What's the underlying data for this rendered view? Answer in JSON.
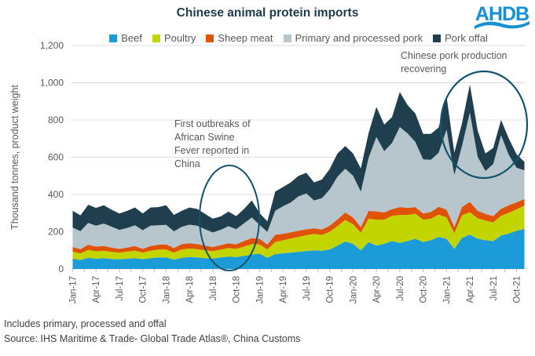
{
  "header": {
    "title": "Chinese animal protein imports",
    "logo_text": "AHDB",
    "logo_color": "#1590d2"
  },
  "annotations": {
    "asf": "First outbreaks of\nAfrican Swine\nFever reported  in\nChina",
    "recovery": "Chinese pork production\nrecovering"
  },
  "footer": {
    "note": "Includes  primary, processed and offal",
    "source": "Source: IHS Maritime & Trade- Global Trade Atlas®, China Customs"
  },
  "colors": {
    "grid": "#dcdcdc",
    "tick": "#bfbfbf",
    "axis_text": "#595959",
    "ellipse": "#14536e"
  },
  "chart_data": {
    "type": "area",
    "stacked": true,
    "title": "Chinese animal protein imports",
    "xlabel": "",
    "ylabel": "Thousand tonnes, product weight",
    "ylim": [
      0,
      1200
    ],
    "y_tick_step": 200,
    "y_tick_labels": [
      "0",
      "200",
      "400",
      "600",
      "800",
      "1,000",
      "1,200"
    ],
    "x_label_every": 3,
    "grid": "horizontal",
    "legend_position": "top",
    "categories": [
      "Jan-17",
      "Feb-17",
      "Mar-17",
      "Apr-17",
      "May-17",
      "Jun-17",
      "Jul-17",
      "Aug-17",
      "Sep-17",
      "Oct-17",
      "Nov-17",
      "Dec-17",
      "Jan-18",
      "Feb-18",
      "Mar-18",
      "Apr-18",
      "May-18",
      "Jun-18",
      "Jul-18",
      "Aug-18",
      "Sep-18",
      "Oct-18",
      "Nov-18",
      "Dec-18",
      "Jan-19",
      "Feb-19",
      "Mar-19",
      "Apr-19",
      "May-19",
      "Jun-19",
      "Jul-19",
      "Aug-19",
      "Sep-19",
      "Oct-19",
      "Nov-19",
      "Dec-19",
      "Jan-20",
      "Feb-20",
      "Mar-20",
      "Apr-20",
      "May-20",
      "Jun-20",
      "Jul-20",
      "Aug-20",
      "Sep-20",
      "Oct-20",
      "Nov-20",
      "Dec-20",
      "Jan-21",
      "Feb-21",
      "Mar-21",
      "Apr-21",
      "May-21",
      "Jun-21",
      "Jul-21",
      "Aug-21",
      "Sep-21",
      "Oct-21",
      "Nov-21"
    ],
    "series": [
      {
        "name": "Beef",
        "color": "#1b9cd8",
        "values": [
          55,
          48,
          60,
          55,
          58,
          54,
          52,
          55,
          58,
          52,
          58,
          62,
          62,
          50,
          60,
          64,
          62,
          58,
          56,
          62,
          66,
          64,
          70,
          78,
          82,
          60,
          80,
          84,
          88,
          92,
          96,
          100,
          98,
          105,
          125,
          148,
          135,
          100,
          145,
          125,
          135,
          150,
          140,
          150,
          162,
          145,
          155,
          172,
          162,
          108,
          168,
          185,
          162,
          155,
          150,
          180,
          190,
          205,
          215
        ]
      },
      {
        "name": "Poultry",
        "color": "#c3d500",
        "values": [
          38,
          36,
          42,
          40,
          40,
          38,
          36,
          38,
          40,
          36,
          40,
          42,
          42,
          38,
          44,
          46,
          45,
          42,
          40,
          42,
          46,
          44,
          50,
          55,
          50,
          45,
          65,
          70,
          75,
          80,
          85,
          88,
          85,
          95,
          105,
          115,
          105,
          95,
          125,
          140,
          130,
          135,
          150,
          140,
          135,
          120,
          115,
          120,
          115,
          85,
          120,
          120,
          110,
          105,
          100,
          105,
          112,
          115,
          125
        ]
      },
      {
        "name": "Sheep meat",
        "color": "#e05206",
        "values": [
          25,
          22,
          28,
          25,
          26,
          23,
          20,
          22,
          25,
          20,
          25,
          26,
          28,
          24,
          30,
          28,
          27,
          25,
          22,
          24,
          26,
          24,
          30,
          33,
          30,
          26,
          38,
          35,
          34,
          33,
          32,
          30,
          29,
          32,
          36,
          40,
          36,
          30,
          42,
          44,
          38,
          36,
          42,
          38,
          35,
          33,
          36,
          42,
          42,
          32,
          45,
          55,
          40,
          36,
          34,
          38,
          40,
          38,
          35
        ]
      },
      {
        "name": "Primary and processed pork",
        "color": "#b7c5cd",
        "values": [
          104,
          97,
          117,
          112,
          120,
          112,
          102,
          105,
          112,
          100,
          110,
          105,
          105,
          90,
          92,
          100,
          98,
          88,
          78,
          82,
          92,
          82,
          95,
          110,
          75,
          68,
          130,
          148,
          160,
          185,
          192,
          150,
          168,
          195,
          230,
          235,
          225,
          190,
          285,
          400,
          330,
          355,
          430,
          400,
          350,
          290,
          280,
          290,
          430,
          280,
          330,
          480,
          290,
          230,
          280,
          395,
          270,
          185,
          155
        ]
      },
      {
        "name": "Pork offal",
        "color": "#1f3f4f",
        "values": [
          90,
          85,
          98,
          96,
          98,
          91,
          88,
          92,
          95,
          90,
          97,
          97,
          105,
          88,
          86,
          92,
          90,
          83,
          74,
          72,
          78,
          70,
          77,
          92,
          63,
          56,
          102,
          103,
          108,
          110,
          111,
          97,
          100,
          110,
          124,
          122,
          119,
          125,
          133,
          161,
          142,
          139,
          188,
          152,
          153,
          137,
          139,
          136,
          178,
          120,
          122,
          150,
          141,
          94,
          86,
          82,
          88,
          72,
          45
        ]
      }
    ]
  }
}
